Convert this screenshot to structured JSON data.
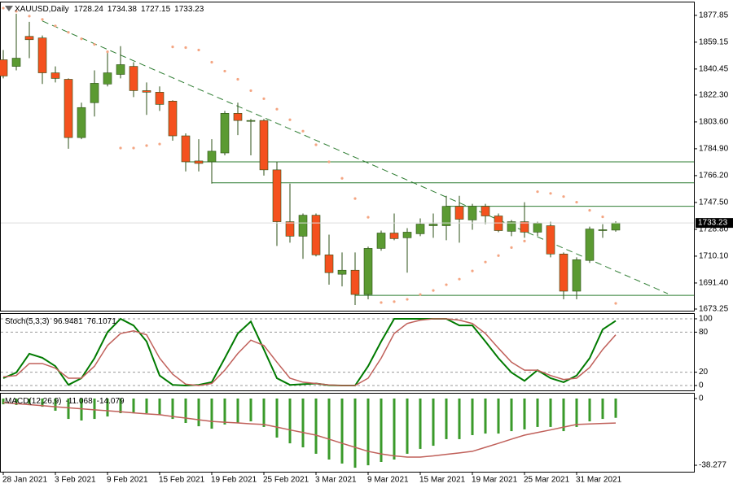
{
  "chart_data": [
    {
      "type": "candlestick",
      "title": "XAUUSD,Daily",
      "categories": [
        "28 Jan 2021",
        null,
        null,
        null,
        "3 Feb 2021",
        null,
        null,
        null,
        "9 Feb 2021",
        null,
        null,
        null,
        "15 Feb 2021",
        null,
        null,
        null,
        "19 Feb 2021",
        null,
        null,
        null,
        "25 Feb 2021",
        null,
        null,
        null,
        "3 Mar 2021",
        null,
        null,
        null,
        "9 Mar 2021",
        null,
        null,
        null,
        "15 Mar 2021",
        null,
        null,
        null,
        "19 Mar 2021",
        null,
        null,
        null,
        "25 Mar 2021",
        null,
        null,
        null,
        "31 Mar 2021",
        null,
        null,
        null
      ],
      "open": [
        1846.9,
        1842.3,
        1863.2,
        1862.1,
        1837.8,
        1833.3,
        1792.7,
        1817.0,
        1830.0,
        1836.7,
        1842.3,
        1825.4,
        1824.3,
        1818.1,
        1793.9,
        1776.4,
        1775.8,
        1782.0,
        1809.6,
        1804.0,
        1804.6,
        1770.2,
        1734.1,
        1724.0,
        1738.6,
        1711.0,
        1697.5,
        1700.3,
        1683.4,
        1715.5,
        1726.2,
        1722.9,
        1725.7,
        1731.3,
        1731.3,
        1744.8,
        1735.3,
        1744.8,
        1738.1,
        1727.4,
        1734.1,
        1726.8,
        1731.3,
        1711.6,
        1685.7,
        1707.1,
        1727.9,
        1728.24
      ],
      "high": [
        1853.7,
        1879.0,
        1873.3,
        1863.8,
        1842.3,
        1833.9,
        1817.0,
        1839.5,
        1852.5,
        1856.4,
        1845.2,
        1831.1,
        1828.3,
        1818.7,
        1795.6,
        1791.6,
        1791.6,
        1811.3,
        1817.0,
        1805.7,
        1805.7,
        1775.8,
        1760.6,
        1739.8,
        1739.8,
        1725.1,
        1712.7,
        1712.7,
        1716.7,
        1727.9,
        1739.8,
        1729.6,
        1736.4,
        1739.8,
        1752.1,
        1752.1,
        1746.5,
        1746.5,
        1739.8,
        1735.3,
        1747.7,
        1734.1,
        1734.1,
        1712.7,
        1709.3,
        1730.7,
        1732.4,
        1734.38
      ],
      "low": [
        1833.9,
        1839.5,
        1848.0,
        1830.0,
        1831.1,
        1784.9,
        1791.6,
        1807.4,
        1828.3,
        1833.9,
        1820.9,
        1808.5,
        1811.3,
        1790.5,
        1769.1,
        1769.1,
        1760.6,
        1780.3,
        1794.4,
        1780.3,
        1766.2,
        1717.2,
        1719.5,
        1708.2,
        1709.9,
        1690.2,
        1689.0,
        1676.1,
        1680.0,
        1713.9,
        1721.2,
        1698.6,
        1724.0,
        1722.9,
        1721.2,
        1719.5,
        1728.5,
        1732.4,
        1726.8,
        1724.0,
        1722.9,
        1724.0,
        1709.3,
        1680.0,
        1680.0,
        1705.4,
        1722.9,
        1727.15
      ],
      "close": [
        1835.6,
        1848.0,
        1860.9,
        1837.8,
        1833.9,
        1792.7,
        1813.6,
        1830.5,
        1837.8,
        1843.5,
        1825.4,
        1824.3,
        1815.8,
        1793.9,
        1775.8,
        1774.7,
        1783.2,
        1809.6,
        1804.6,
        1804.6,
        1770.2,
        1734.1,
        1724.0,
        1738.6,
        1711.0,
        1698.6,
        1700.3,
        1683.4,
        1715.5,
        1726.2,
        1722.3,
        1726.8,
        1732.4,
        1732.4,
        1744.8,
        1735.8,
        1744.8,
        1738.1,
        1727.9,
        1734.1,
        1726.8,
        1733.0,
        1711.6,
        1685.7,
        1707.6,
        1729.0,
        1728.5,
        1733.23
      ],
      "up_color": "#5b9a32",
      "down_color": "#f4511e",
      "border_color": "#2b4f14",
      "sar_values": [
        1882.9,
        1880.7,
        1877.3,
        1875.0,
        1870.5,
        1866.0,
        1861.5,
        1857.6,
        1852.5,
        1785.4,
        1785.4,
        1787.1,
        1788.2,
        1855.9,
        1855.4,
        1853.7,
        1845.2,
        1839.0,
        1833.3,
        1825.4,
        1819.8,
        1812.5,
        1805.1,
        1797.2,
        1787.7,
        1775.8,
        1764.3,
        1750.2,
        1737.2,
        1677.8,
        1678.4,
        1680.0,
        1683.4,
        1686.2,
        1690.2,
        1694.1,
        1699.8,
        1706.0,
        1710.5,
        1716.1,
        1720.6,
        1755.0,
        1753.8,
        1751.6,
        1747.7,
        1742.0,
        1737.5,
        1677.2
      ],
      "sar_color": "#f4a582",
      "levels": [
        {
          "value": 1775.8,
          "start": 14
        },
        {
          "value": 1761.2,
          "start": 16
        },
        {
          "value": 1744.8,
          "start": 34
        },
        {
          "value": 1682.8,
          "start": 27
        }
      ],
      "level_color": "#2e7d32",
      "trendline": [
        [
          3,
          1873.9
        ],
        [
          47,
          1699.8
        ]
      ],
      "trendline_color": "#2e7d32",
      "ylim": [
        1672.1,
        1887.4
      ],
      "yticks": [
        1877.85,
        1859.15,
        1840.45,
        {
          "value": 1822.3,
          "label": "1822.30"
        },
        {
          "value": 1803.6,
          "label": "1803.60"
        },
        {
          "value": 1784.9,
          "label": "1784.90"
        },
        {
          "value": 1766.2,
          "label": "1766.20"
        },
        {
          "value": 1747.5,
          "label": "1747.50"
        },
        {
          "value": 1728.8,
          "label": "1728.80"
        },
        {
          "value": 1710.1,
          "label": "1710.10"
        },
        {
          "value": 1691.4,
          "label": "1691.40"
        },
        1673.25
      ],
      "grid": false
    },
    {
      "type": "line",
      "title": "Stoch(5,3,3)",
      "series": [
        {
          "color": "#007a00",
          "values": [
            11,
            19.5,
            47.6,
            41.5,
            29,
            1,
            11,
            41,
            80,
            100,
            90,
            66,
            15,
            1,
            0,
            1,
            5,
            41,
            78,
            96,
            54,
            11,
            1,
            2,
            3,
            0.5,
            0,
            0,
            29,
            66,
            100,
            100,
            100,
            100,
            100,
            90,
            90,
            66,
            41,
            19.5,
            7,
            23,
            11,
            5,
            15,
            41,
            84,
            96.9481
          ]
        },
        {
          "color": "#c0605a",
          "values": [
            13,
            15,
            33,
            33,
            26,
            11,
            11,
            29,
            60,
            78,
            82,
            76,
            41,
            17,
            2,
            0,
            3,
            23,
            48,
            68,
            60,
            35,
            11,
            5,
            3,
            1,
            0,
            0,
            11,
            41,
            78,
            93,
            98,
            100,
            100,
            98,
            93,
            78,
            56,
            35,
            23,
            23,
            15,
            9,
            11,
            27,
            54,
            76.1071
          ]
        }
      ],
      "ylim": [
        -7.3,
        108.5
      ],
      "yticks": [
        100,
        80,
        20,
        0
      ],
      "grid": true
    },
    {
      "type": "bar",
      "title": "MACD(12,26,9)",
      "values": [
        -3.3,
        -3.7,
        -3.3,
        -4.7,
        -7.0,
        -11.7,
        -12.6,
        -11.7,
        -10.3,
        -8.4,
        -7.9,
        -8.4,
        -9.3,
        -11.7,
        -14.0,
        -15.9,
        -17.3,
        -14.9,
        -14.0,
        -13.1,
        -16.3,
        -22.4,
        -25.7,
        -28.0,
        -31.7,
        -35.0,
        -37.3,
        -39.7,
        -38.3,
        -36.4,
        -35.0,
        -31.7,
        -28.9,
        -27.1,
        -23.3,
        -23.3,
        -21.0,
        -20.1,
        -20.1,
        -18.7,
        -17.7,
        -16.3,
        -16.3,
        -18.7,
        -16.3,
        -13.1,
        -11.7,
        -11.068
      ],
      "color": "#3a9a2a",
      "signal_values": [
        -2.3,
        -2.9,
        -3.5,
        -4.1,
        -4.7,
        -5.3,
        -5.9,
        -6.5,
        -7.0,
        -7.6,
        -8.2,
        -8.8,
        -9.3,
        -10.3,
        -11.2,
        -12.2,
        -13.1,
        -13.6,
        -14.0,
        -14.5,
        -14.9,
        -16.4,
        -18.0,
        -19.5,
        -21.0,
        -23.3,
        -25.7,
        -28.0,
        -30.3,
        -31.8,
        -32.9,
        -33.6,
        -33.6,
        -32.9,
        -32.0,
        -31.2,
        -30.3,
        -28.0,
        -25.7,
        -23.3,
        -21.0,
        -19.5,
        -18.0,
        -16.4,
        -14.9,
        -14.6,
        -14.3,
        -14.079
      ],
      "signal_color": "#c0605a",
      "ylim": [
        -42.0,
        3.27
      ],
      "yticks": [
        0,
        -38.277
      ],
      "grid": false
    }
  ]
}
